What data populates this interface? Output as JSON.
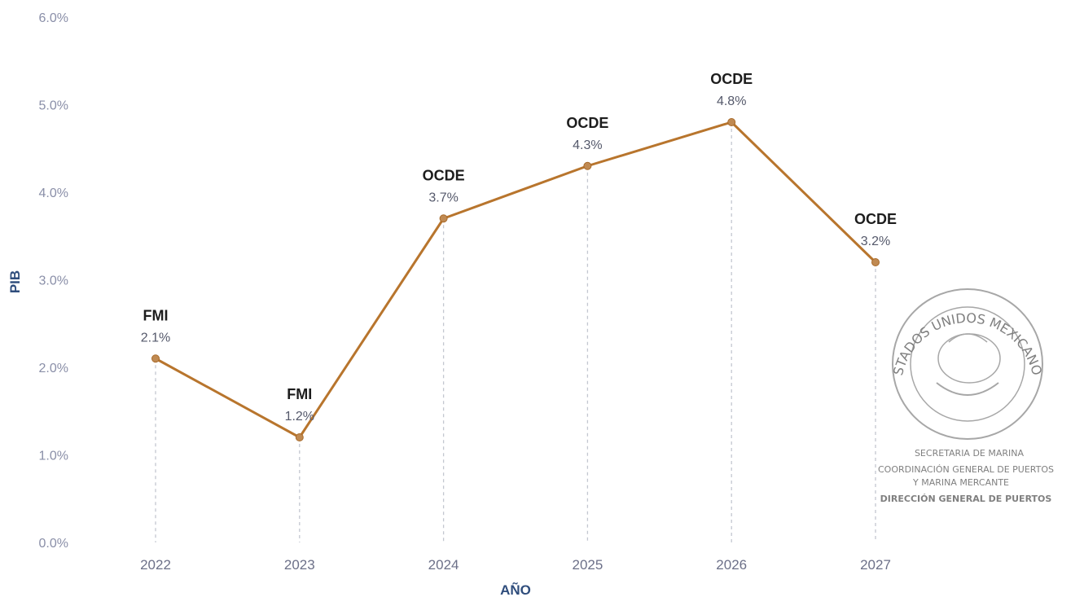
{
  "chart_data": {
    "type": "line",
    "x": [
      "2022",
      "2023",
      "2024",
      "2025",
      "2026",
      "2027"
    ],
    "series": [
      {
        "values": [
          2.1,
          1.2,
          3.7,
          4.3,
          4.8,
          3.2
        ],
        "point_labels": [
          "FMI",
          "FMI",
          "OCDE",
          "OCDE",
          "OCDE",
          "OCDE"
        ],
        "value_labels": [
          "2.1%",
          "1.2%",
          "3.7%",
          "4.3%",
          "4.8%",
          "3.2%"
        ],
        "color": "#b8752d"
      }
    ],
    "ylabel": "PIB",
    "xlabel": "AÑO",
    "ylim": [
      0,
      6
    ],
    "yticks": [
      "0.0%",
      "1.0%",
      "2.0%",
      "3.0%",
      "4.0%",
      "5.0%",
      "6.0%"
    ],
    "grid": false,
    "drop_lines": true
  },
  "seal": {
    "ring_text": "ESTADOS UNIDOS MEXICANOS",
    "lines": [
      "SECRETARIA DE MARINA",
      "COORDINACIÓN GENERAL DE PUERTOS",
      "Y MARINA MERCANTE",
      "DIRECCIÓN GENERAL DE PUERTOS"
    ]
  }
}
